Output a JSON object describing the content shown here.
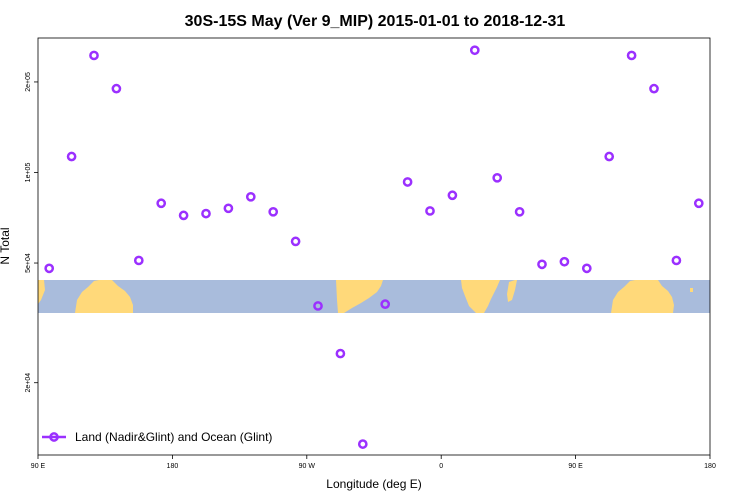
{
  "chart_data": {
    "type": "scatter",
    "title": "30S-15S May (Ver 9_MIP)   2015-01-01 to 2018-12-31",
    "xlabel": "Longitude (deg E)",
    "ylabel": "N Total",
    "y_scale": "log",
    "xlim": [
      90,
      540
    ],
    "ylim": [
      11500,
      280000
    ],
    "x_ticks": [
      {
        "value": 90,
        "label": "90 E"
      },
      {
        "value": 180,
        "label": "180"
      },
      {
        "value": 270,
        "label": "90 W"
      },
      {
        "value": 360,
        "label": "0"
      },
      {
        "value": 450,
        "label": "90 E"
      },
      {
        "value": 540,
        "label": "180"
      }
    ],
    "y_ticks": [
      {
        "value": 20000,
        "label": "2e+04"
      },
      {
        "value": 50000,
        "label": "5e+04"
      },
      {
        "value": 100000,
        "label": "1e+05"
      },
      {
        "value": 200000,
        "label": "2e+05"
      }
    ],
    "grid": false,
    "legend": {
      "position": "bottom-left"
    },
    "colors": {
      "series": "#9b30ff",
      "ocean": "#a9bcdc",
      "land": "#ffd97a"
    },
    "series": [
      {
        "name": "Land (Nadir&Glint) and Ocean (Glint)",
        "x": [
          97.5,
          112.5,
          127.5,
          142.5,
          157.5,
          172.5,
          187.5,
          202.5,
          217.5,
          232.5,
          247.5,
          262.5,
          277.5,
          292.5,
          307.5,
          322.5,
          337.5,
          352.5,
          367.5,
          382.5,
          397.5,
          412.5,
          427.5,
          442.5,
          457.5,
          472.5,
          487.5,
          502.5,
          517.5,
          532.5
        ],
        "y": [
          48000,
          113000,
          245000,
          190000,
          51000,
          79000,
          72000,
          73000,
          76000,
          83000,
          74000,
          59000,
          36000,
          25000,
          12500,
          36500,
          93000,
          74500,
          84000,
          255000,
          96000,
          74000,
          49500,
          50500,
          48000,
          113000,
          245000,
          190000,
          51000,
          79000
        ]
      }
    ],
    "map_strip": {
      "lat_range": [
        "30S",
        "15S"
      ]
    }
  }
}
